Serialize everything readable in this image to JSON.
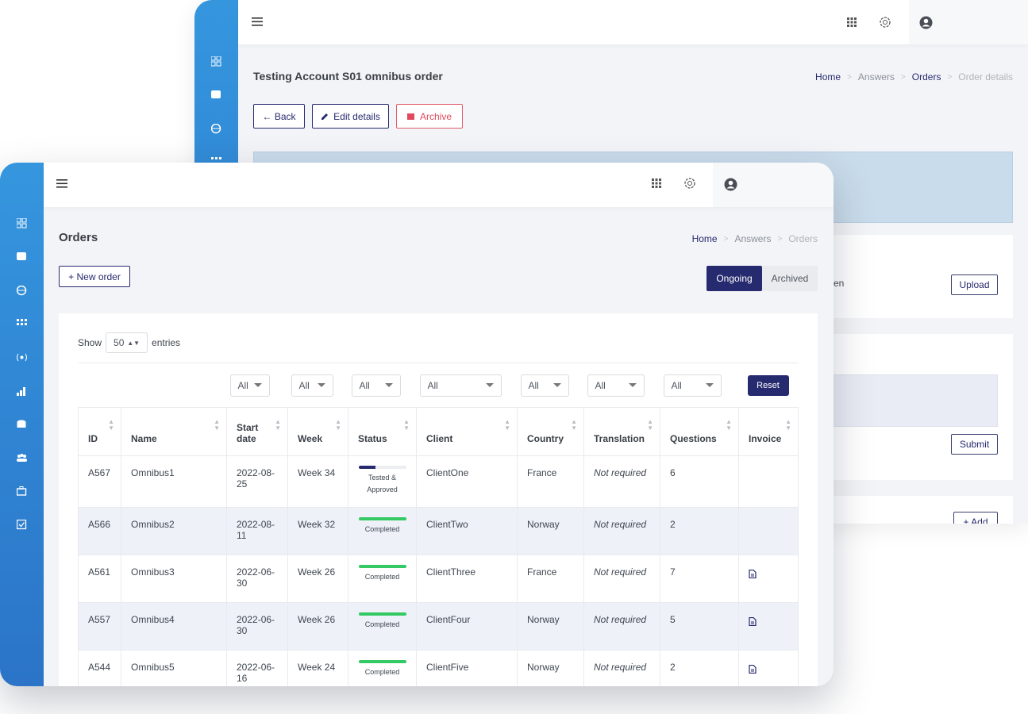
{
  "back_window": {
    "title": "Testing Account S01 omnibus order",
    "breadcrumb": [
      "Home",
      "Answers",
      "Orders",
      "Order details"
    ],
    "buttons": [
      "← Back",
      "Edit details",
      "Archive"
    ],
    "partial_text": "en",
    "upload": "Upload",
    "submit": "Submit",
    "add": "+ Add"
  },
  "front_window": {
    "title": "Orders",
    "breadcrumb": [
      "Home",
      "Answers",
      "Orders"
    ],
    "new_order": "+ New order",
    "tabs": [
      "Ongoing",
      "Archived"
    ],
    "show_label": "Show",
    "page_size": "50",
    "entries_label": "entries",
    "filters": [
      "All",
      "All",
      "All",
      "All",
      "All",
      "All",
      "All"
    ],
    "reset": "Reset",
    "table": {
      "columns": [
        "ID",
        "Name",
        "Start date",
        "Week",
        "Status",
        "Client",
        "Country",
        "Translation",
        "Questions",
        "Invoice"
      ],
      "rows": [
        {
          "id": "A567",
          "name": "Omnibus1",
          "start_date": "2022-08-25",
          "week": "Week 34",
          "status": "Tested & Approved",
          "progress": 35,
          "progress_color": "#262a6e",
          "client": "ClientOne",
          "country": "France",
          "translation": "Not required",
          "questions": "6",
          "invoice": false
        },
        {
          "id": "A566",
          "name": "Omnibus2",
          "start_date": "2022-08-11",
          "week": "Week 32",
          "status": "Completed",
          "progress": 100,
          "progress_color": "#34c964",
          "client": "ClientTwo",
          "country": "Norway",
          "translation": "Not required",
          "questions": "2",
          "invoice": false
        },
        {
          "id": "A561",
          "name": "Omnibus3",
          "start_date": "2022-06-30",
          "week": "Week 26",
          "status": "Completed",
          "progress": 100,
          "progress_color": "#34c964",
          "client": "ClientThree",
          "country": "France",
          "translation": "Not required",
          "questions": "7",
          "invoice": true
        },
        {
          "id": "A557",
          "name": "Omnibus4",
          "start_date": "2022-06-30",
          "week": "Week 26",
          "status": "Completed",
          "progress": 100,
          "progress_color": "#34c964",
          "client": "ClientFour",
          "country": "Norway",
          "translation": "Not required",
          "questions": "5",
          "invoice": true
        },
        {
          "id": "A544",
          "name": "Omnibus5",
          "start_date": "2022-06-16",
          "week": "Week 24",
          "status": "Completed",
          "progress": 100,
          "progress_color": "#34c964",
          "client": "ClientFive",
          "country": "Norway",
          "translation": "Not required",
          "questions": "2",
          "invoice": true
        }
      ]
    }
  }
}
